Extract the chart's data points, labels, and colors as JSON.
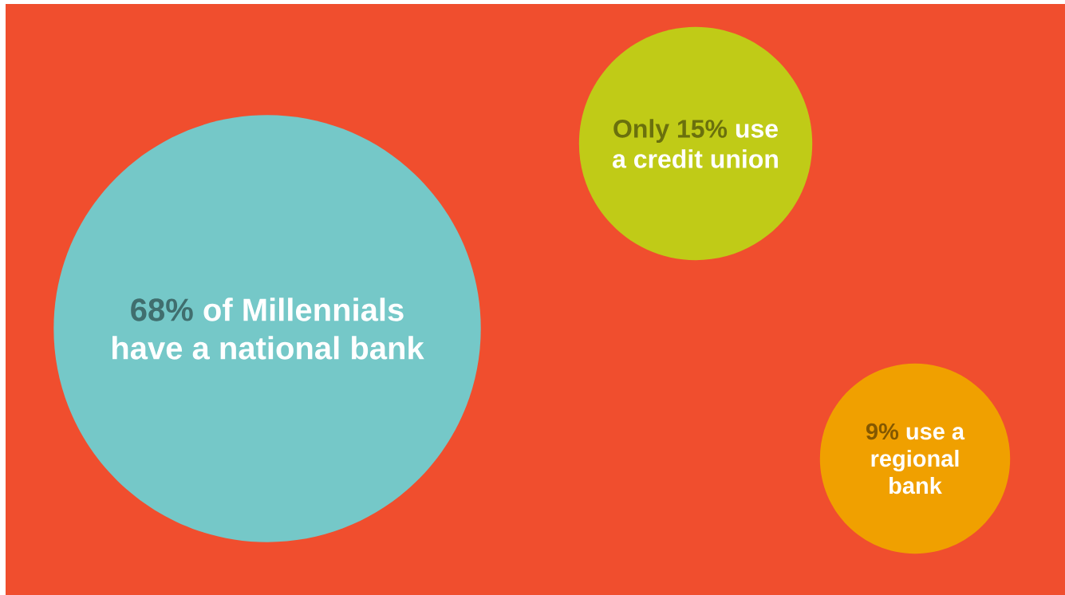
{
  "chart_data": {
    "type": "other",
    "categories": [
      "of Millennials have a national bank",
      "use a credit union",
      "use a regional bank"
    ],
    "values": [
      68,
      15,
      9
    ],
    "value_labels": [
      "68%",
      "Only 15%",
      "9%"
    ],
    "colors": [
      "#75c8c8",
      "#c0cb17",
      "#f0a000"
    ]
  }
}
